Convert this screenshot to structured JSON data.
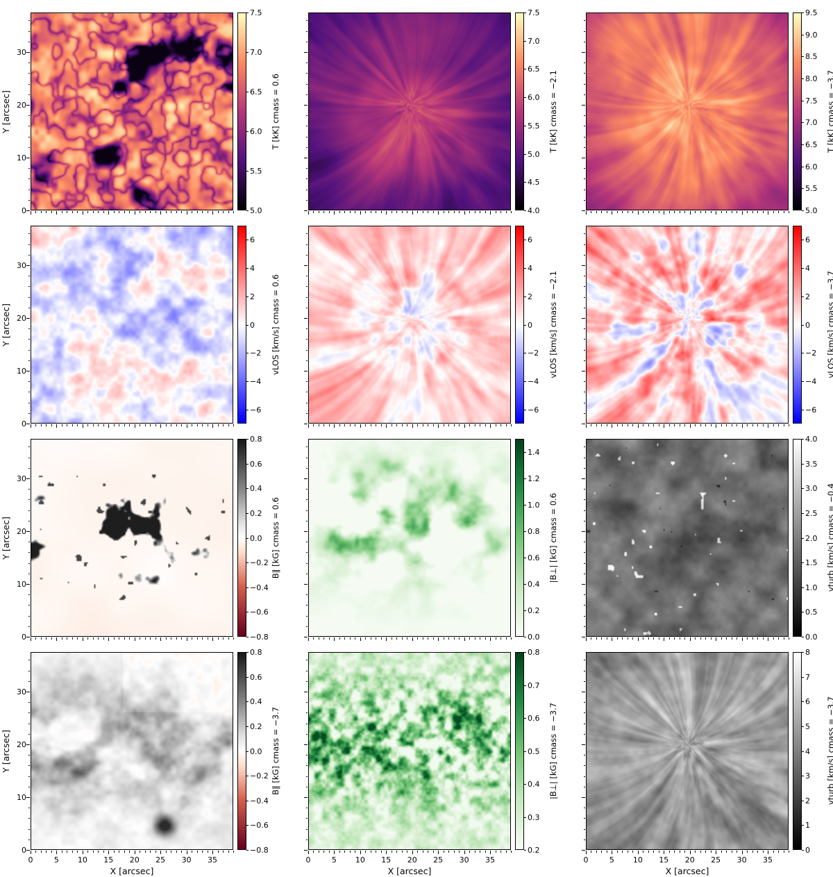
{
  "figure": {
    "background": "#ffffff",
    "panel_grid": {
      "rows": 4,
      "cols": 3
    },
    "x_axis": {
      "label": "X [arcsec]",
      "range": [
        0,
        39
      ],
      "major_ticks": [
        0,
        5,
        10,
        15,
        20,
        25,
        30,
        35
      ],
      "minor_step": 1
    },
    "y_axis": {
      "label": "Y [arcsec]",
      "range": [
        0,
        37.5
      ],
      "major_ticks": [
        0,
        10,
        20,
        30
      ],
      "minor_step": 2
    }
  },
  "chart_data": [
    {
      "type": "heatmap",
      "row": 0,
      "col": 0,
      "quantity": "temperature",
      "colorbar_label": "T [kK] cmass = 0.6",
      "colormap": "magma",
      "value_range": [
        5.0,
        7.5
      ],
      "colorbar_ticks": [
        5.0,
        5.5,
        6.0,
        6.5,
        7.0,
        7.5
      ],
      "tick_decimals": 1,
      "description": "Photospheric temperature: bright yellow granulation with dark intergranular magnetic patches",
      "texture": {
        "kind": "granule",
        "seed": 11
      }
    },
    {
      "type": "heatmap",
      "row": 0,
      "col": 1,
      "quantity": "temperature",
      "colorbar_label": "T [kK] cmass = −2.1",
      "colormap": "magma",
      "value_range": [
        4.0,
        7.5
      ],
      "colorbar_ticks": [
        4.0,
        4.5,
        5.0,
        5.5,
        6.0,
        6.5,
        7.0,
        7.5
      ],
      "tick_decimals": 1,
      "description": "Chromospheric temperature: dark purple background with warm fibril wisps",
      "texture": {
        "kind": "chromo1",
        "seed": 22
      }
    },
    {
      "type": "heatmap",
      "row": 0,
      "col": 2,
      "quantity": "temperature",
      "colorbar_label": "T [kK] cmass = −3.7",
      "colormap": "magma",
      "value_range": [
        5.0,
        9.5
      ],
      "colorbar_ticks": [
        5.0,
        5.5,
        6.0,
        6.5,
        7.0,
        7.5,
        8.0,
        8.5,
        9.0,
        9.5
      ],
      "tick_decimals": 1,
      "description": "Upper-chromospheric temperature: bright orange fibrils with hot central network",
      "texture": {
        "kind": "chromo2",
        "seed": 33
      }
    },
    {
      "type": "heatmap",
      "row": 1,
      "col": 0,
      "quantity": "line-of-sight velocity",
      "colorbar_label": "vLOS [km/s] cmass = 0.6",
      "colormap": "bwr",
      "value_range": [
        -7,
        7
      ],
      "colorbar_ticks": [
        -6,
        -4,
        -2,
        0,
        2,
        4,
        6
      ],
      "tick_decimals": 0,
      "description": "Photospheric LOS velocity: mild blue/red granular mottling",
      "texture": {
        "kind": "vphot",
        "seed": 44
      }
    },
    {
      "type": "heatmap",
      "row": 1,
      "col": 1,
      "quantity": "line-of-sight velocity",
      "colorbar_label": "vLOS [km/s] cmass = −2.1",
      "colormap": "bwr",
      "value_range": [
        -7,
        7
      ],
      "colorbar_ticks": [
        -6,
        -4,
        -2,
        0,
        2,
        4,
        6
      ],
      "tick_decimals": 0,
      "description": "Chromospheric LOS velocity: radial red streaks with mixed core",
      "texture": {
        "kind": "vchr1",
        "seed": 55
      }
    },
    {
      "type": "heatmap",
      "row": 1,
      "col": 2,
      "quantity": "line-of-sight velocity",
      "colorbar_label": "vLOS [km/s] cmass = −3.7",
      "colormap": "bwr",
      "value_range": [
        -7,
        7
      ],
      "colorbar_ticks": [
        -6,
        -4,
        -2,
        0,
        2,
        4,
        6
      ],
      "tick_decimals": 0,
      "description": "Upper-chromospheric LOS velocity: strong blue and red patches in the center, red fibrils outward",
      "texture": {
        "kind": "vchr2",
        "seed": 66
      }
    },
    {
      "type": "heatmap",
      "row": 2,
      "col": 0,
      "quantity": "longitudinal magnetic field",
      "colorbar_label": "B∥ [kG] cmass = 0.6",
      "colormap": "rdgy",
      "value_range": [
        -0.8,
        0.8
      ],
      "colorbar_ticks": [
        -0.8,
        -0.6,
        -0.4,
        -0.2,
        0.0,
        0.2,
        0.4,
        0.6,
        0.8
      ],
      "tick_decimals": 1,
      "description": "Photospheric longitudinal field: black positive-polarity plage patches on white background",
      "texture": {
        "kind": "bpar0",
        "seed": 77
      }
    },
    {
      "type": "heatmap",
      "row": 2,
      "col": 1,
      "quantity": "transverse magnetic field",
      "colorbar_label": "|B⊥| [kG] cmass = 0.6",
      "colormap": "greens",
      "value_range": [
        0.0,
        1.5
      ],
      "colorbar_ticks": [
        0.0,
        0.2,
        0.4,
        0.6,
        0.8,
        1.0,
        1.2,
        1.4
      ],
      "tick_decimals": 1,
      "description": "Photospheric transverse field: green patches tracing plage edges",
      "texture": {
        "kind": "bperp0",
        "seed": 88
      }
    },
    {
      "type": "heatmap",
      "row": 2,
      "col": 2,
      "quantity": "turbulent velocity",
      "colorbar_label": "vturb [km/s] cmass = −0.4",
      "colormap": "gray",
      "value_range": [
        0.0,
        4.0
      ],
      "colorbar_ticks": [
        0.0,
        0.5,
        1.0,
        1.5,
        2.0,
        2.5,
        3.0,
        3.5,
        4.0
      ],
      "tick_decimals": 1,
      "description": "Microturbulent velocity: dark gray mottling with bright speckles",
      "texture": {
        "kind": "vturb0",
        "seed": 99
      }
    },
    {
      "type": "heatmap",
      "row": 3,
      "col": 0,
      "quantity": "longitudinal magnetic field",
      "colorbar_label": "B∥ [kG] cmass = −3.7",
      "colormap": "rdgy",
      "value_range": [
        -0.8,
        0.8
      ],
      "colorbar_ticks": [
        -0.8,
        -0.6,
        -0.4,
        -0.2,
        0.0,
        0.2,
        0.4,
        0.6,
        0.8
      ],
      "tick_decimals": 1,
      "description": "Chromospheric longitudinal field: diffuse dark clouds, faint pink top right, dark knot near (26,4)",
      "texture": {
        "kind": "bpar1",
        "seed": 110
      }
    },
    {
      "type": "heatmap",
      "row": 3,
      "col": 1,
      "quantity": "transverse magnetic field",
      "colorbar_label": "|B⊥| [kG] cmass = −3.7",
      "colormap": "greens",
      "value_range": [
        0.2,
        0.8
      ],
      "colorbar_ticks": [
        0.2,
        0.3,
        0.4,
        0.5,
        0.6,
        0.7,
        0.8
      ],
      "tick_decimals": 1,
      "description": "Chromospheric transverse field: noisy green speckle concentrated in the active band",
      "texture": {
        "kind": "bperp1",
        "seed": 121
      }
    },
    {
      "type": "heatmap",
      "row": 3,
      "col": 2,
      "quantity": "turbulent velocity",
      "colorbar_label": "vturb [km/s] cmass = −3.7",
      "colormap": "gray",
      "value_range": [
        0,
        8
      ],
      "colorbar_ticks": [
        0,
        1,
        2,
        3,
        4,
        5,
        6,
        7,
        8
      ],
      "tick_decimals": 0,
      "description": "Chromospheric microturbulence: bright gray radial fibrils",
      "texture": {
        "kind": "vturb1",
        "seed": 132
      }
    }
  ]
}
